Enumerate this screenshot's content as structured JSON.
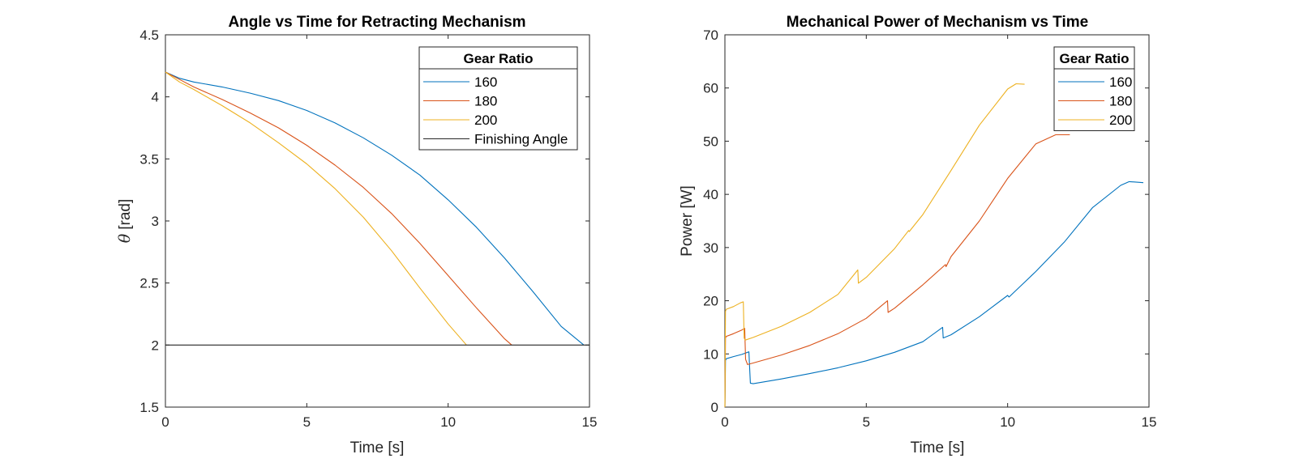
{
  "chart_data": [
    {
      "type": "line",
      "title": "Angle vs Time for Retracting Mechanism",
      "xlabel": "Time [s]",
      "ylabel_symbol": "θ",
      "ylabel": "[rad]",
      "xlim": [
        0,
        15
      ],
      "ylim": [
        1.5,
        4.5
      ],
      "xticks": [
        "0",
        "5",
        "10",
        "15"
      ],
      "yticks": [
        "1.5",
        "2",
        "2.5",
        "3",
        "3.5",
        "4",
        "4.5"
      ],
      "grid": false,
      "legend": {
        "title": "Gear Ratio",
        "location": "top-right"
      },
      "series": [
        {
          "name": "160",
          "color": "#0072BD",
          "x": [
            0,
            0.5,
            1,
            2,
            3,
            4,
            5,
            6,
            7,
            8,
            9,
            10,
            11,
            12,
            13,
            14,
            14.8
          ],
          "y": [
            4.2,
            4.15,
            4.12,
            4.08,
            4.03,
            3.97,
            3.89,
            3.79,
            3.67,
            3.53,
            3.37,
            3.17,
            2.95,
            2.7,
            2.43,
            2.15,
            2.0
          ]
        },
        {
          "name": "180",
          "color": "#D95319",
          "x": [
            0,
            0.5,
            1,
            2,
            3,
            4,
            5,
            6,
            7,
            8,
            9,
            10,
            11,
            12,
            12.25
          ],
          "y": [
            4.2,
            4.14,
            4.08,
            3.98,
            3.87,
            3.75,
            3.61,
            3.45,
            3.27,
            3.06,
            2.82,
            2.56,
            2.3,
            2.05,
            2.0
          ]
        },
        {
          "name": "200",
          "color": "#EDB120",
          "x": [
            0,
            0.5,
            1,
            2,
            3,
            4,
            5,
            6,
            7,
            8,
            9,
            10,
            10.65
          ],
          "y": [
            4.2,
            4.12,
            4.06,
            3.93,
            3.79,
            3.63,
            3.46,
            3.26,
            3.03,
            2.76,
            2.46,
            2.17,
            2.0
          ]
        },
        {
          "name": "Finishing Angle",
          "color": "#262626",
          "x": [
            0,
            15
          ],
          "y": [
            2.0,
            2.0
          ]
        }
      ]
    },
    {
      "type": "line",
      "title": "Mechanical Power of Mechanism vs Time",
      "xlabel": "Time [s]",
      "ylabel": "Power [W]",
      "xlim": [
        0,
        15
      ],
      "ylim": [
        0,
        70
      ],
      "xticks": [
        "0",
        "5",
        "10",
        "15"
      ],
      "yticks": [
        "0",
        "10",
        "20",
        "30",
        "40",
        "50",
        "60",
        "70"
      ],
      "grid": false,
      "legend": {
        "title": "Gear Ratio",
        "location": "top-right"
      },
      "series": [
        {
          "name": "160",
          "color": "#0072BD",
          "x": [
            0,
            0.02,
            0.05,
            0.3,
            0.6,
            0.85,
            0.87,
            0.9,
            1.0,
            2,
            3,
            4,
            5,
            6,
            7,
            7.7,
            7.72,
            8,
            9,
            10,
            10.05,
            11,
            12,
            13,
            14,
            14.3,
            14.8
          ],
          "y": [
            0,
            8.8,
            9.1,
            9.5,
            9.9,
            10.4,
            8,
            4.5,
            4.4,
            5.3,
            6.3,
            7.4,
            8.7,
            10.3,
            12.3,
            15.0,
            13.0,
            13.6,
            17,
            21,
            20.7,
            25.5,
            31,
            37.5,
            41.7,
            42.4,
            42.2
          ]
        },
        {
          "name": "180",
          "color": "#D95319",
          "x": [
            0,
            0.02,
            0.05,
            0.3,
            0.6,
            0.7,
            0.73,
            0.8,
            1.0,
            2,
            3,
            4,
            5,
            5.75,
            5.77,
            6,
            7,
            7.8,
            7.82,
            8,
            9,
            10,
            11,
            11.7,
            12.2
          ],
          "y": [
            0,
            13.0,
            13.3,
            13.8,
            14.5,
            14.8,
            9,
            8.0,
            8.3,
            9.8,
            11.6,
            13.8,
            16.7,
            20.0,
            17.8,
            18.6,
            23,
            26.8,
            26.4,
            28.3,
            35,
            43,
            49.5,
            51.2,
            51.2
          ]
        },
        {
          "name": "200",
          "color": "#EDB120",
          "x": [
            0,
            0.02,
            0.05,
            0.3,
            0.55,
            0.65,
            0.68,
            0.72,
            1.0,
            2,
            3,
            4,
            4.7,
            4.72,
            5,
            6,
            6.5,
            6.52,
            7,
            8,
            9,
            10,
            10.3,
            10.6
          ],
          "y": [
            0,
            18.0,
            18.4,
            18.9,
            19.6,
            19.8,
            13,
            12.6,
            13.1,
            15.2,
            17.8,
            21.2,
            25.8,
            23.3,
            24.4,
            29.8,
            33.2,
            33.0,
            36.2,
            44.5,
            53,
            59.8,
            60.8,
            60.7
          ]
        }
      ]
    }
  ]
}
